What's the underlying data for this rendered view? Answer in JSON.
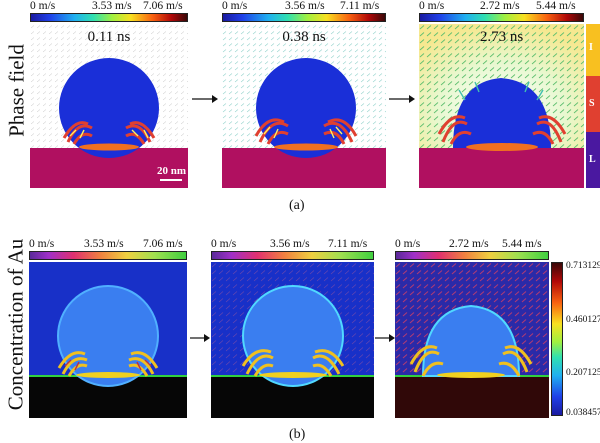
{
  "row_a": {
    "label": "Phase field",
    "caption": "(a)",
    "scale_bar": "20 nm",
    "phase_legend": [
      "L",
      "S",
      "I"
    ],
    "panels": [
      {
        "time": "0.11 ns",
        "cb_min": "0 m/s",
        "cb_mid": "3.53 m/s",
        "cb_max": "7.06 m/s"
      },
      {
        "time": "0.38 ns",
        "cb_min": "0 m/s",
        "cb_mid": "3.56 m/s",
        "cb_max": "7.11 m/s"
      },
      {
        "time": "2.73 ns",
        "cb_min": "0 m/s",
        "cb_mid": "2.72 m/s",
        "cb_max": "5.44 m/s"
      }
    ]
  },
  "row_b": {
    "label": "Concentration of Au",
    "caption": "(b)",
    "panels": [
      {
        "cb_min": "0 m/s",
        "cb_mid": "3.53 m/s",
        "cb_max": "7.06 m/s"
      },
      {
        "cb_min": "0 m/s",
        "cb_mid": "3.56 m/s",
        "cb_max": "7.11 m/s"
      },
      {
        "cb_min": "0 m/s",
        "cb_mid": "2.72 m/s",
        "cb_max": "5.44 m/s"
      }
    ],
    "conc_colorbar": {
      "max": "0.713129",
      "mid_high": "0.460127",
      "mid_low": "0.207125",
      "min": "0.038457"
    }
  },
  "colors": {
    "substrate_a": "#b01060",
    "droplet_a": "#1a2fd8",
    "background_b": "#1830c8",
    "droplet_b": "#3a7ef0",
    "substrate_b": "#060606"
  }
}
